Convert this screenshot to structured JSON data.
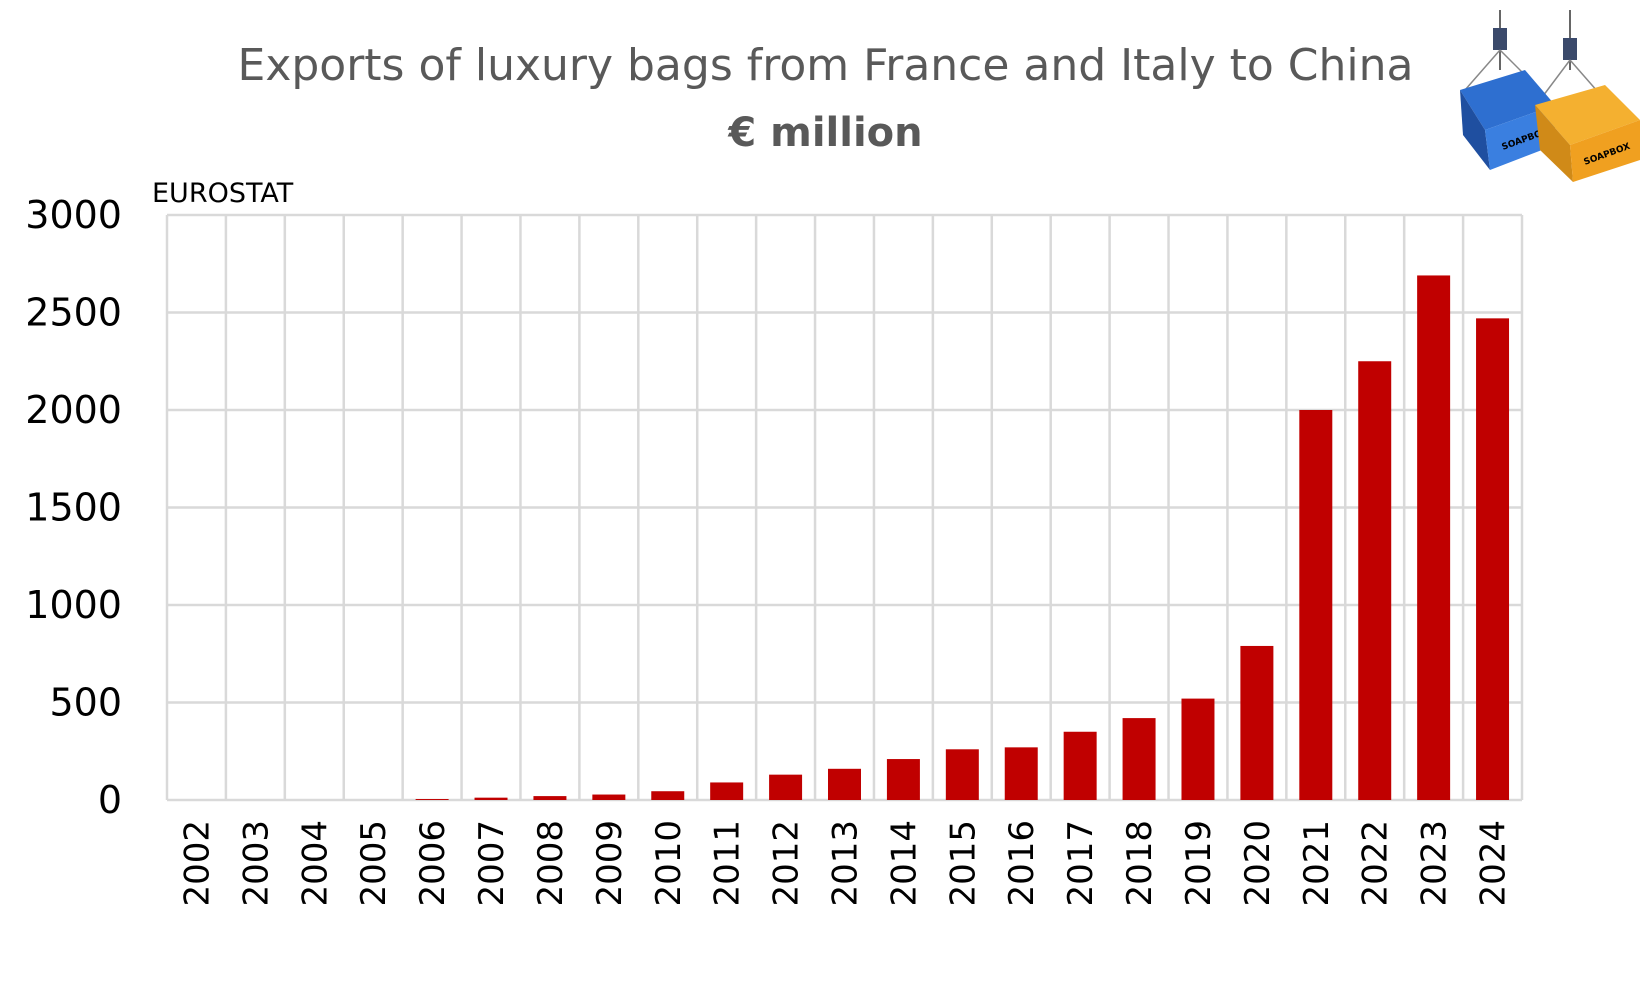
{
  "chart_data": {
    "type": "bar",
    "title": "Exports of luxury bags from France and Italy to China",
    "subtitle": "€ million",
    "source": "EUROSTAT",
    "categories": [
      "2002",
      "2003",
      "2004",
      "2005",
      "2006",
      "2007",
      "2008",
      "2009",
      "2010",
      "2011",
      "2012",
      "2013",
      "2014",
      "2015",
      "2016",
      "2017",
      "2018",
      "2019",
      "2020",
      "2021",
      "2022",
      "2023",
      "2024"
    ],
    "values": [
      0,
      0,
      0,
      0,
      5,
      12,
      20,
      28,
      45,
      90,
      130,
      160,
      210,
      260,
      270,
      350,
      420,
      520,
      790,
      2000,
      2250,
      2690,
      2470
    ],
    "y_ticks": [
      "0",
      "500",
      "1000",
      "1500",
      "2000",
      "2500",
      "3000"
    ],
    "ylim": [
      0,
      3000
    ],
    "grid": true,
    "bar_color": "#C00000",
    "grid_color": "#D9D9D9"
  },
  "logo": {
    "text": "SOAPBOX",
    "colors": [
      "#1F5FBF",
      "#F0A020"
    ]
  }
}
